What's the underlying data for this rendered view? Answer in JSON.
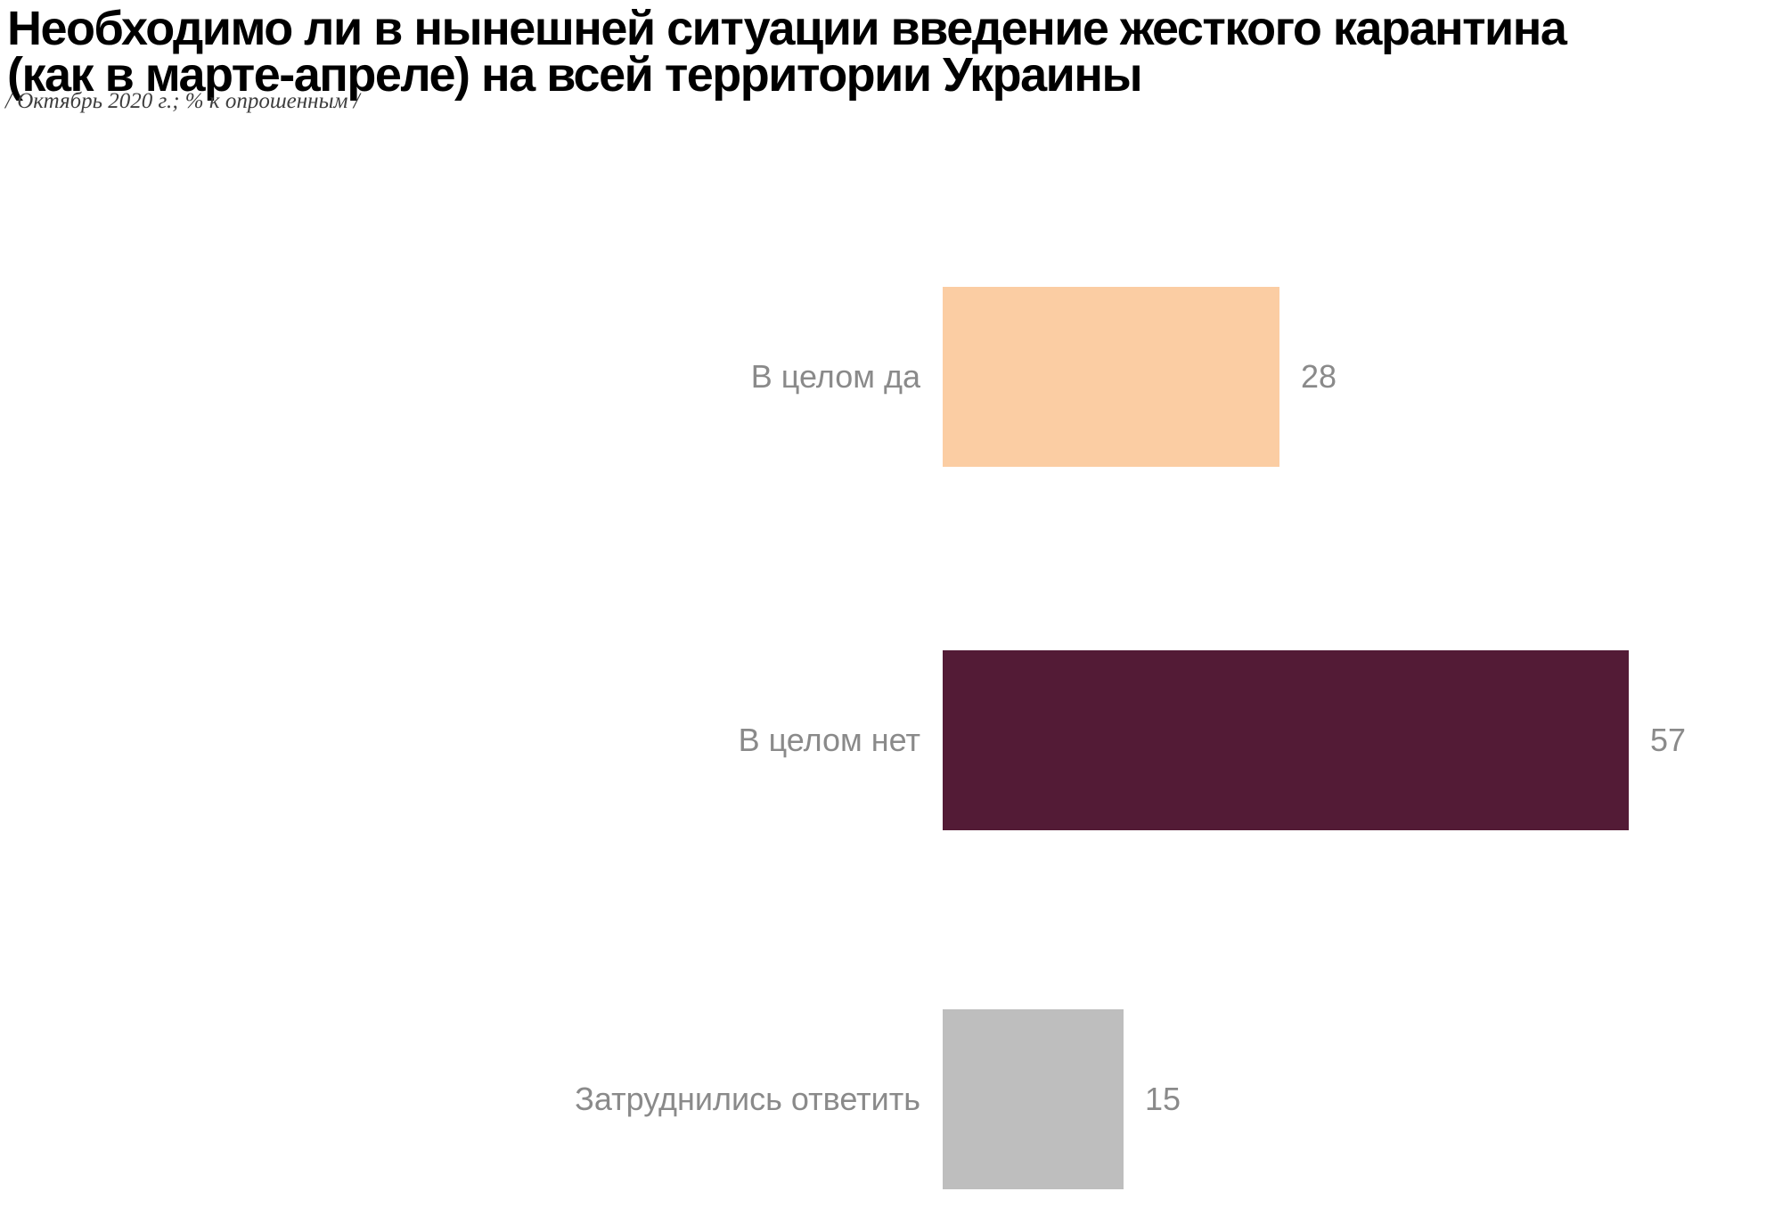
{
  "page": {
    "background_color": "#ffffff"
  },
  "header": {
    "title_line1": "Необходимо ли в нынешней ситуации введение жесткого карантина",
    "title_line2": "(как в марте-апреле) на всей территории Украины",
    "subtitle": "/ Октябрь 2020 г.; % к опрошенным /"
  },
  "chart_data": {
    "type": "bar",
    "orientation": "horizontal",
    "title": "Необходимо ли в нынешней ситуации введение жесткого карантина (как в марте-апреле) на всей территории Украины",
    "subtitle": "/ Октябрь 2020 г.; % к опрошенным /",
    "unit": "% к опрошенным",
    "categories": [
      "В целом да",
      "В целом нет",
      "Затруднились ответить"
    ],
    "values": [
      28,
      57,
      15
    ],
    "bar_colors": [
      "#fbcda3",
      "#531b36",
      "#bebebe"
    ],
    "label_color": "#8a8a8a",
    "value_label_color": "#8a8a8a",
    "title_color": "#000000",
    "xlim": [
      0,
      60
    ],
    "grid": false,
    "legend": false,
    "value_labels_shown": true
  }
}
